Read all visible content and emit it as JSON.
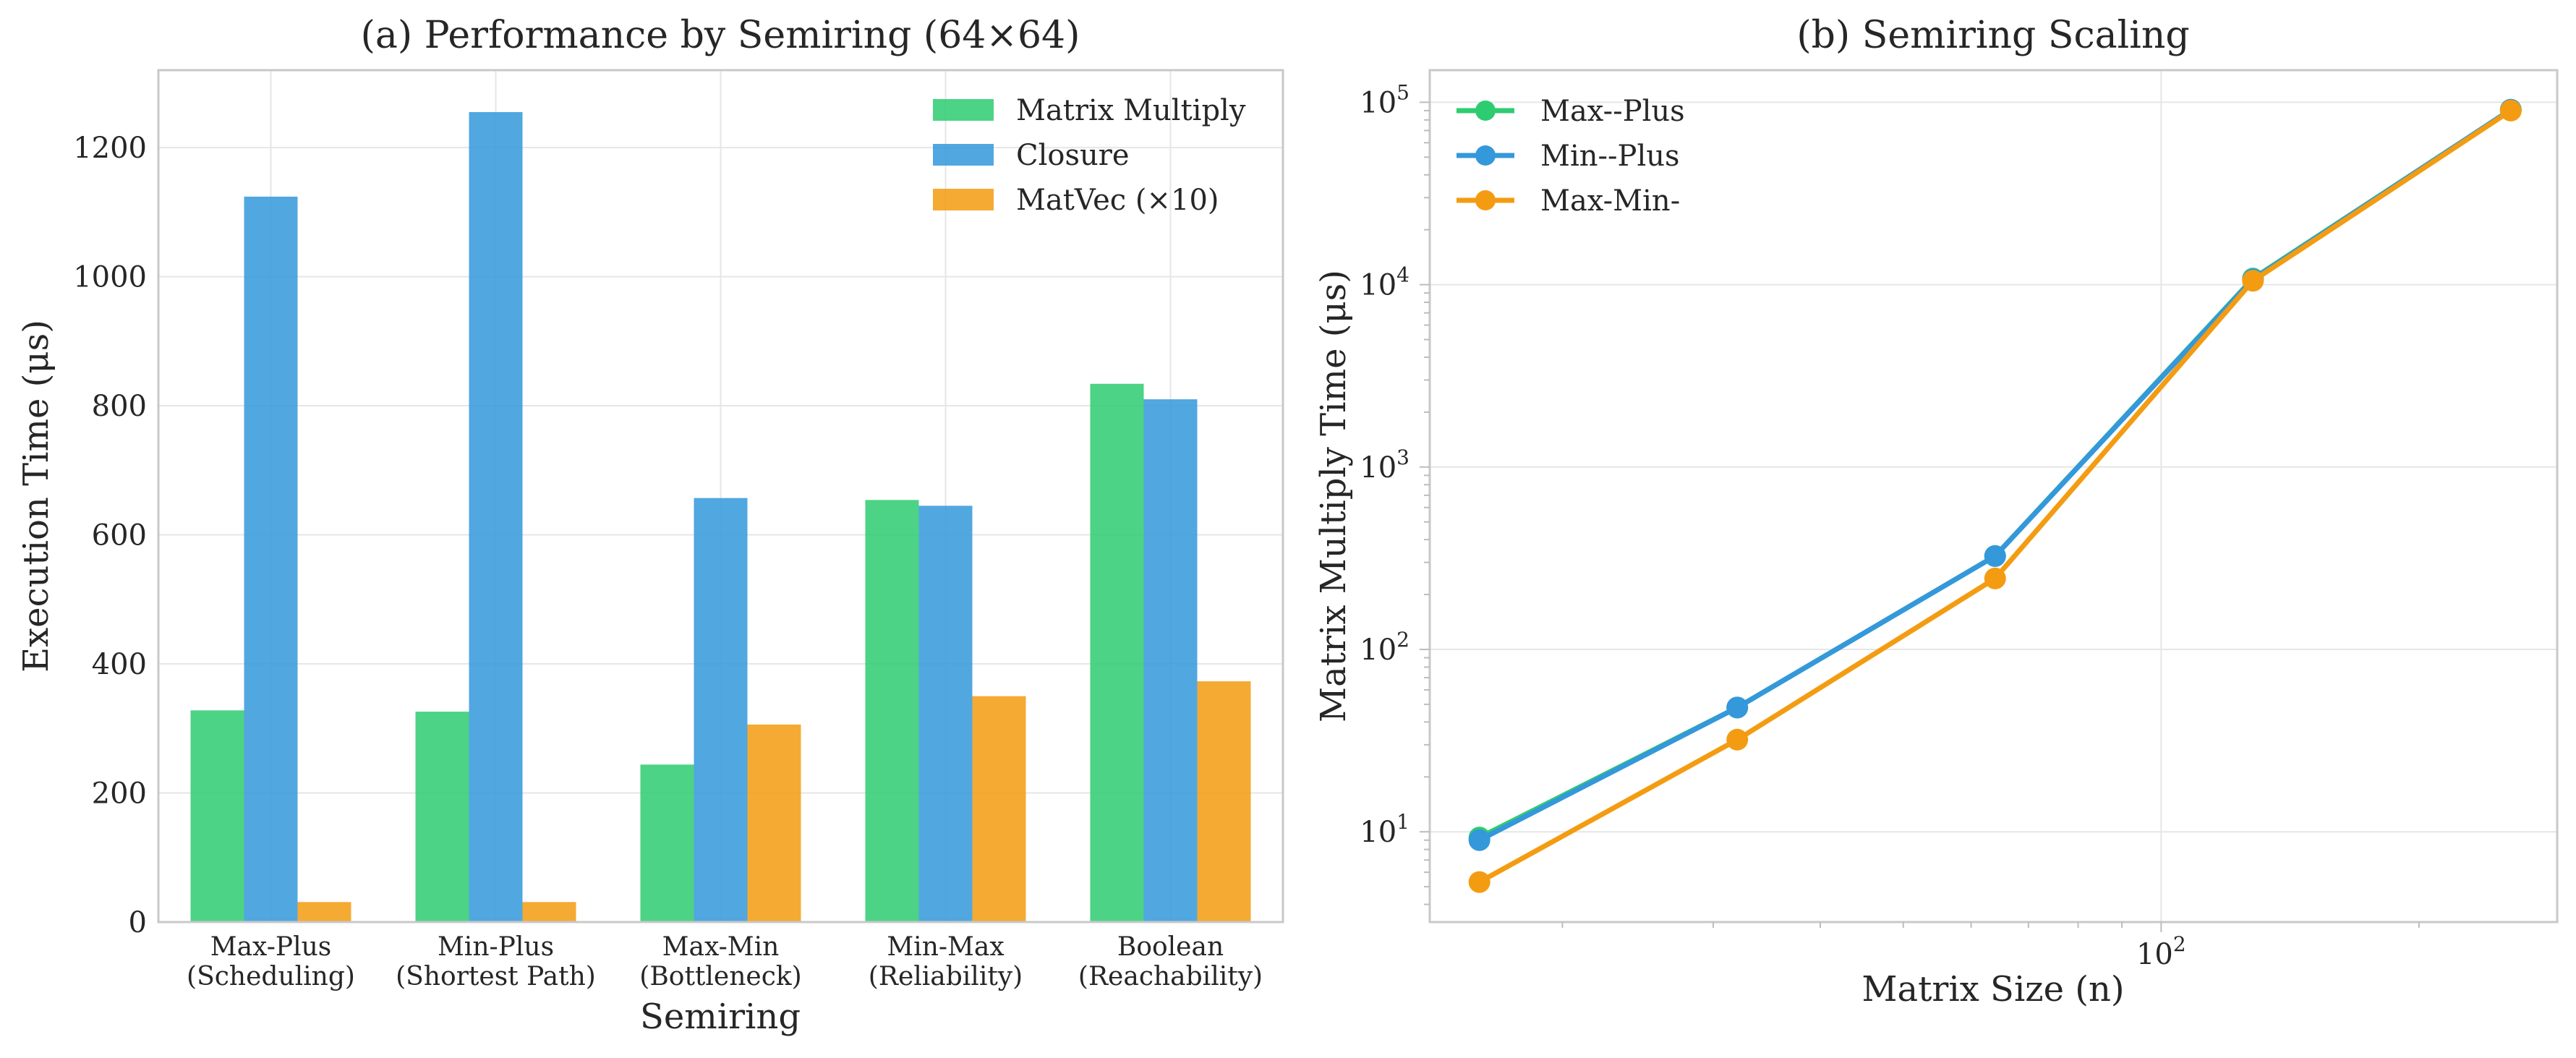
{
  "colors": {
    "matrix_multiply": "#2ecc71",
    "closure": "#3498db",
    "matvec": "#f39c12",
    "max_plus": "#2ecc71",
    "min_plus": "#3498db",
    "max_min": "#f39c12"
  },
  "chart_data": [
    {
      "type": "bar",
      "title": "(a) Performance by Semiring (64×64)",
      "xlabel": "Semiring",
      "ylabel": "Execution Time (μs)",
      "ylim": [
        0,
        1320
      ],
      "yticks": [
        0,
        200,
        400,
        600,
        800,
        1000,
        1200
      ],
      "grid": true,
      "legend_position": "top-right",
      "categories": [
        {
          "line1": "Max-Plus",
          "line2": "(Scheduling)"
        },
        {
          "line1": "Min-Plus",
          "line2": "(Shortest Path)"
        },
        {
          "line1": "Max-Min",
          "line2": "(Bottleneck)"
        },
        {
          "line1": "Min-Max",
          "line2": "(Reliability)"
        },
        {
          "line1": "Boolean",
          "line2": "(Reachability)"
        }
      ],
      "series": [
        {
          "name": "Matrix Multiply",
          "color_key": "matrix_multiply",
          "values": [
            328,
            326,
            244,
            654,
            834
          ]
        },
        {
          "name": "Closure",
          "color_key": "closure",
          "values": [
            1124,
            1255,
            657,
            645,
            810
          ]
        },
        {
          "name": "MatVec (×10)",
          "color_key": "matvec",
          "values": [
            31,
            31,
            306,
            350,
            373
          ]
        }
      ]
    },
    {
      "type": "line",
      "title": "(b) Semiring Scaling",
      "xlabel": "Matrix Size (n)",
      "ylabel": "Matrix Multiply Time (μs)",
      "xscale": "log",
      "yscale": "log",
      "xlim": [
        14,
        290
      ],
      "ylim": [
        3.2,
        150000
      ],
      "x_major_ticks": [
        {
          "value": 100,
          "base": "10",
          "exp": "2"
        }
      ],
      "y_major_ticks": [
        {
          "value": 10,
          "base": "10",
          "exp": "1"
        },
        {
          "value": 100,
          "base": "10",
          "exp": "2"
        },
        {
          "value": 1000,
          "base": "10",
          "exp": "3"
        },
        {
          "value": 10000,
          "base": "10",
          "exp": "4"
        },
        {
          "value": 100000,
          "base": "10",
          "exp": "5"
        }
      ],
      "grid": true,
      "legend_position": "top-left",
      "x": [
        16,
        32,
        64,
        128,
        256
      ],
      "series": [
        {
          "name": "Max--Plus",
          "color_key": "max_plus",
          "values": [
            9.3,
            48,
            325,
            10800,
            91000
          ]
        },
        {
          "name": "Min--Plus",
          "color_key": "min_plus",
          "values": [
            9.0,
            48,
            325,
            10700,
            91000
          ]
        },
        {
          "name": "Max-Min-",
          "color_key": "max_min",
          "values": [
            5.3,
            32,
            245,
            10500,
            90000
          ]
        }
      ]
    }
  ]
}
